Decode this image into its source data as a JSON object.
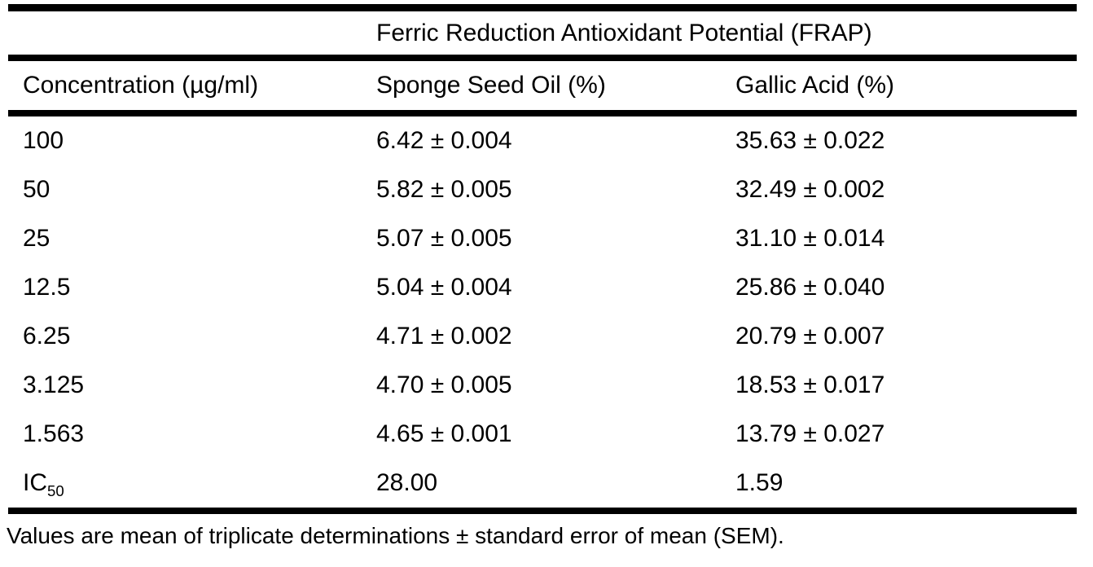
{
  "table": {
    "spanning_header": "Ferric Reduction Antioxidant Potential (FRAP)",
    "columns": [
      "Concentration (µg/ml)",
      "Sponge Seed Oil (%)",
      "Gallic Acid (%)"
    ],
    "rows": [
      {
        "conc": "100",
        "conc_sub": "",
        "sponge": "6.42 ± 0.004",
        "gallic": "35.63 ± 0.022"
      },
      {
        "conc": "50",
        "conc_sub": "",
        "sponge": "5.82 ± 0.005",
        "gallic": "32.49 ± 0.002"
      },
      {
        "conc": "25",
        "conc_sub": "",
        "sponge": "5.07 ± 0.005",
        "gallic": "31.10 ± 0.014"
      },
      {
        "conc": "12.5",
        "conc_sub": "",
        "sponge": "5.04 ± 0.004",
        "gallic": "25.86 ± 0.040"
      },
      {
        "conc": "6.25",
        "conc_sub": "",
        "sponge": "4.71 ± 0.002",
        "gallic": "20.79 ± 0.007"
      },
      {
        "conc": "3.125",
        "conc_sub": "",
        "sponge": "4.70 ± 0.005",
        "gallic": "18.53 ± 0.017"
      },
      {
        "conc": "1.563",
        "conc_sub": "",
        "sponge": "4.65 ± 0.001",
        "gallic": "13.79 ± 0.027"
      },
      {
        "conc": "IC",
        "conc_sub": "50",
        "sponge": "28.00",
        "gallic": "1.59"
      }
    ],
    "footnote": "Values are mean of triplicate determinations ± standard error of mean (SEM).",
    "text_color": "#000000",
    "rule_color": "#000000",
    "background_color": "#ffffff"
  },
  "chart_data": {
    "type": "table",
    "title": "Ferric Reduction Antioxidant Potential (FRAP)",
    "columns": [
      "Concentration (µg/ml)",
      "Sponge Seed Oil (%)",
      "Gallic Acid (%)"
    ],
    "rows": [
      [
        "100",
        "6.42 ± 0.004",
        "35.63 ± 0.022"
      ],
      [
        "50",
        "5.82 ± 0.005",
        "32.49 ± 0.002"
      ],
      [
        "25",
        "5.07 ± 0.005",
        "31.10 ± 0.014"
      ],
      [
        "12.5",
        "5.04 ± 0.004",
        "25.86 ± 0.040"
      ],
      [
        "6.25",
        "4.71 ± 0.002",
        "20.79 ± 0.007"
      ],
      [
        "3.125",
        "4.70 ± 0.005",
        "18.53 ± 0.017"
      ],
      [
        "1.563",
        "4.65 ± 0.001",
        "13.79 ± 0.027"
      ],
      [
        "IC50",
        "28.00",
        "1.59"
      ]
    ],
    "footnote": "Values are mean of triplicate determinations ± standard error of mean (SEM)."
  }
}
